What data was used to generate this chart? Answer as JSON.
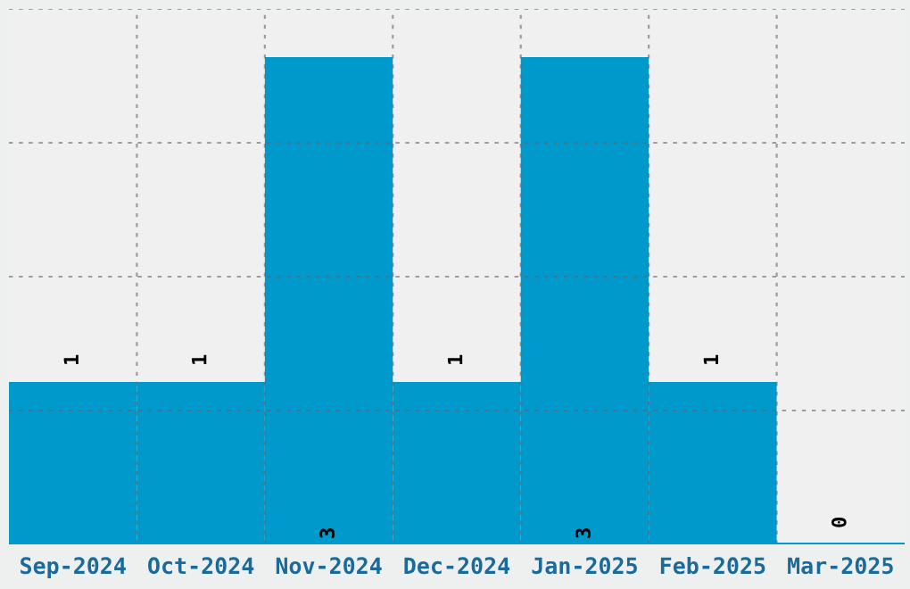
{
  "chart_data": {
    "type": "bar",
    "categories": [
      "Sep-2024",
      "Oct-2024",
      "Nov-2024",
      "Dec-2024",
      "Jan-2025",
      "Feb-2025",
      "Mar-2025"
    ],
    "values": [
      1,
      1,
      3,
      1,
      3,
      1,
      0
    ],
    "color": "#0099cc",
    "data_labels": true,
    "grid": true
  }
}
